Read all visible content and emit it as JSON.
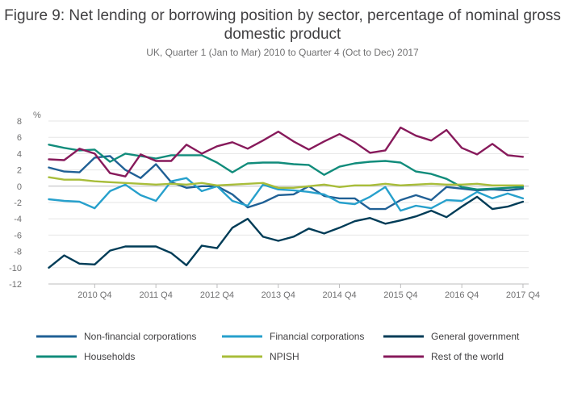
{
  "chart_data": {
    "type": "line",
    "title": "Figure 9: Net lending or borrowing position by sector, percentage of nominal gross domestic product",
    "subtitle": "UK, Quarter 1 (Jan to Mar) 2010 to Quarter 4 (Oct to Dec) 2017",
    "ylabel": "%",
    "ylim": [
      -12,
      8
    ],
    "yticks": [
      8,
      6,
      4,
      2,
      0,
      -2,
      -4,
      -6,
      -8,
      -10,
      -12
    ],
    "xticks": [
      "2010 Q4",
      "2011 Q4",
      "2012 Q4",
      "2013 Q4",
      "2014 Q4",
      "2015 Q4",
      "2016 Q4",
      "2017 Q4"
    ],
    "x": [
      "2010 Q1",
      "2010 Q2",
      "2010 Q3",
      "2010 Q4",
      "2011 Q1",
      "2011 Q2",
      "2011 Q3",
      "2011 Q4",
      "2012 Q1",
      "2012 Q2",
      "2012 Q3",
      "2012 Q4",
      "2013 Q1",
      "2013 Q2",
      "2013 Q3",
      "2013 Q4",
      "2014 Q1",
      "2014 Q2",
      "2014 Q3",
      "2014 Q4",
      "2015 Q1",
      "2015 Q2",
      "2015 Q3",
      "2015 Q4",
      "2016 Q1",
      "2016 Q2",
      "2016 Q3",
      "2016 Q4",
      "2017 Q1",
      "2017 Q2",
      "2017 Q3",
      "2017 Q4"
    ],
    "grid": true,
    "legend_position": "bottom",
    "series": [
      {
        "name": "Non-financial corporations",
        "color": "#206095",
        "values": [
          2.3,
          1.8,
          1.7,
          3.5,
          3.7,
          2.0,
          1.0,
          2.7,
          0.5,
          -0.2,
          0.0,
          0.0,
          -1.0,
          -2.6,
          -2.0,
          -1.1,
          -1.0,
          0.0,
          -1.2,
          -1.5,
          -1.5,
          -2.8,
          -2.8,
          -1.7,
          -1.1,
          -1.7,
          -0.1,
          -0.3,
          -0.5,
          -0.4,
          -0.5,
          -0.3
        ]
      },
      {
        "name": "Financial corporations",
        "color": "#27a0cc",
        "values": [
          -1.6,
          -1.8,
          -1.9,
          -2.7,
          -0.6,
          0.2,
          -1.1,
          -1.8,
          0.6,
          1.0,
          -0.6,
          0.0,
          -1.8,
          -2.4,
          0.2,
          -0.4,
          -0.5,
          -0.7,
          -1.0,
          -2.0,
          -2.2,
          -1.3,
          -0.1,
          -3.0,
          -2.4,
          -2.7,
          -1.7,
          -1.8,
          -0.7,
          -1.5,
          -0.9,
          -1.5
        ]
      },
      {
        "name": "General government",
        "color": "#003c57",
        "values": [
          -10.0,
          -8.5,
          -9.5,
          -9.6,
          -7.9,
          -7.4,
          -7.4,
          -7.4,
          -8.2,
          -9.7,
          -7.3,
          -7.6,
          -5.1,
          -4.0,
          -6.2,
          -6.7,
          -6.2,
          -5.2,
          -5.8,
          -5.1,
          -4.3,
          -3.9,
          -4.6,
          -4.2,
          -3.7,
          -3.0,
          -3.8,
          -2.5,
          -1.3,
          -2.8,
          -2.5,
          -1.9
        ]
      },
      {
        "name": "Households",
        "color": "#118c7b",
        "values": [
          5.1,
          4.7,
          4.4,
          4.5,
          3.0,
          4.0,
          3.7,
          3.4,
          3.8,
          3.8,
          3.8,
          2.9,
          1.7,
          2.8,
          2.9,
          2.9,
          2.7,
          2.6,
          1.4,
          2.4,
          2.8,
          3.0,
          3.1,
          2.9,
          1.8,
          1.5,
          0.9,
          -0.1,
          -0.4,
          -0.3,
          -0.2,
          -0.1
        ]
      },
      {
        "name": "NPISH",
        "color": "#a8bd3a",
        "values": [
          1.1,
          0.8,
          0.8,
          0.6,
          0.5,
          0.4,
          0.3,
          0.2,
          0.3,
          0.2,
          0.4,
          0.1,
          0.2,
          0.3,
          0.4,
          -0.2,
          -0.2,
          0.0,
          0.2,
          -0.1,
          0.1,
          0.1,
          0.3,
          0.1,
          0.2,
          0.3,
          0.2,
          0.2,
          0.3,
          0.1,
          0.1,
          0.1
        ]
      },
      {
        "name": "Rest of the world",
        "color": "#871a5b",
        "values": [
          3.3,
          3.2,
          4.6,
          4.0,
          1.6,
          1.2,
          3.9,
          3.1,
          3.1,
          5.1,
          4.0,
          4.9,
          5.4,
          4.6,
          5.6,
          6.7,
          5.5,
          4.5,
          5.5,
          6.4,
          5.4,
          4.1,
          4.4,
          7.2,
          6.2,
          5.6,
          6.9,
          4.7,
          3.9,
          5.2,
          3.8,
          3.6
        ]
      }
    ]
  }
}
